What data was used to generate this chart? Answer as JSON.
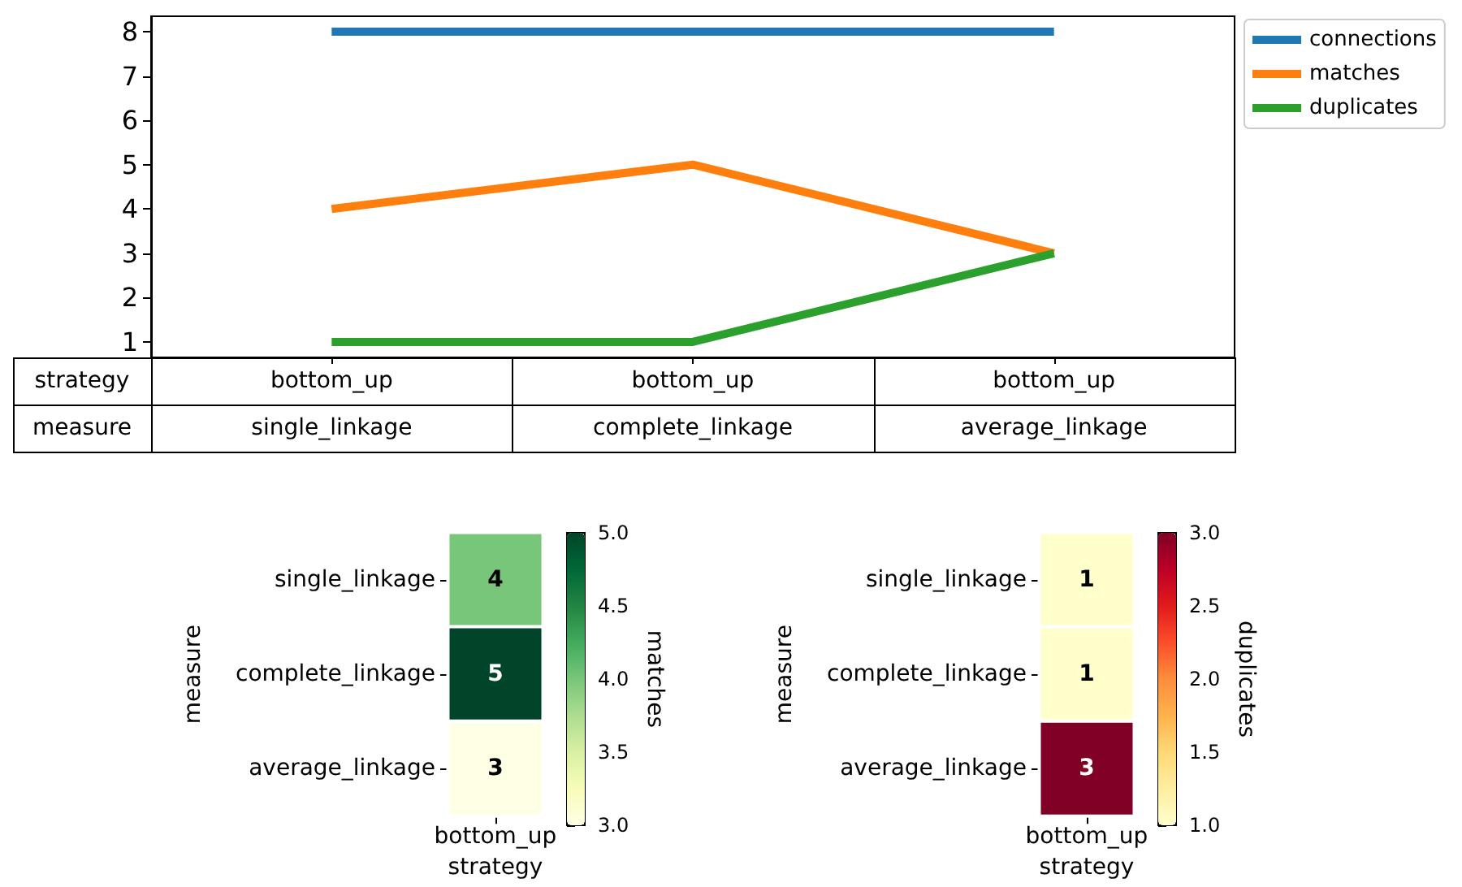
{
  "chart_data": [
    {
      "type": "line",
      "categories": [
        "single_linkage",
        "complete_linkage",
        "average_linkage"
      ],
      "series": [
        {
          "name": "connections",
          "color": "#1f77b4",
          "values": [
            8,
            8,
            8
          ]
        },
        {
          "name": "matches",
          "color": "#ff7f0e",
          "values": [
            4,
            5,
            3
          ]
        },
        {
          "name": "duplicates",
          "color": "#2ca02c",
          "values": [
            1,
            1,
            3
          ]
        }
      ],
      "annotations": [
        "strategy",
        "bottom_up",
        "bottom_up",
        "bottom_up",
        "measure"
      ],
      "ylim": [
        0.65,
        8.35
      ],
      "yticks": [
        1,
        2,
        3,
        4,
        5,
        6,
        7,
        8
      ],
      "grid": false,
      "legend": "top right",
      "marker": "none",
      "line_style": "solid"
    },
    {
      "type": "heatmap",
      "categories": [
        "bottom_up"
      ],
      "y_categories": [
        "single_linkage",
        "complete_linkage",
        "average_linkage"
      ],
      "cells": [
        [
          4
        ],
        [
          5
        ],
        [
          3
        ]
      ],
      "xlabel": "strategy",
      "ylabel": "measure",
      "clabel": "matches",
      "clim": [
        3,
        5
      ],
      "cticks": [
        {
          "value": 3,
          "label": "3.0"
        },
        {
          "value": 3.5,
          "label": "3.5"
        },
        {
          "value": 4,
          "label": "4.0"
        },
        {
          "value": 4.5,
          "label": "4.5"
        },
        {
          "value": 5,
          "label": "5.0"
        }
      ],
      "colors": [
        "#ffffe5",
        "#f7fcb9",
        "#d9f0a3",
        "#addd8e",
        "#78c679",
        "#41ab5d",
        "#238443",
        "#006837",
        "#004529"
      ],
      "data_labels": true
    },
    {
      "type": "heatmap",
      "categories": [
        "bottom_up"
      ],
      "y_categories": [
        "single_linkage",
        "complete_linkage",
        "average_linkage"
      ],
      "cells": [
        [
          1
        ],
        [
          1
        ],
        [
          3
        ]
      ],
      "xlabel": "strategy",
      "ylabel": "measure",
      "clabel": "duplicates",
      "clim": [
        1,
        3
      ],
      "cticks": [
        {
          "value": 1,
          "label": "1.0"
        },
        {
          "value": 1.5,
          "label": "1.5"
        },
        {
          "value": 2,
          "label": "2.0"
        },
        {
          "value": 2.5,
          "label": "2.5"
        },
        {
          "value": 3,
          "label": "3.0"
        }
      ],
      "colors": [
        "#ffffcc",
        "#ffeda0",
        "#fed976",
        "#feb24c",
        "#fd8d3c",
        "#fc4e2a",
        "#e31a1c",
        "#bd0026",
        "#800026"
      ],
      "data_labels": true
    }
  ]
}
